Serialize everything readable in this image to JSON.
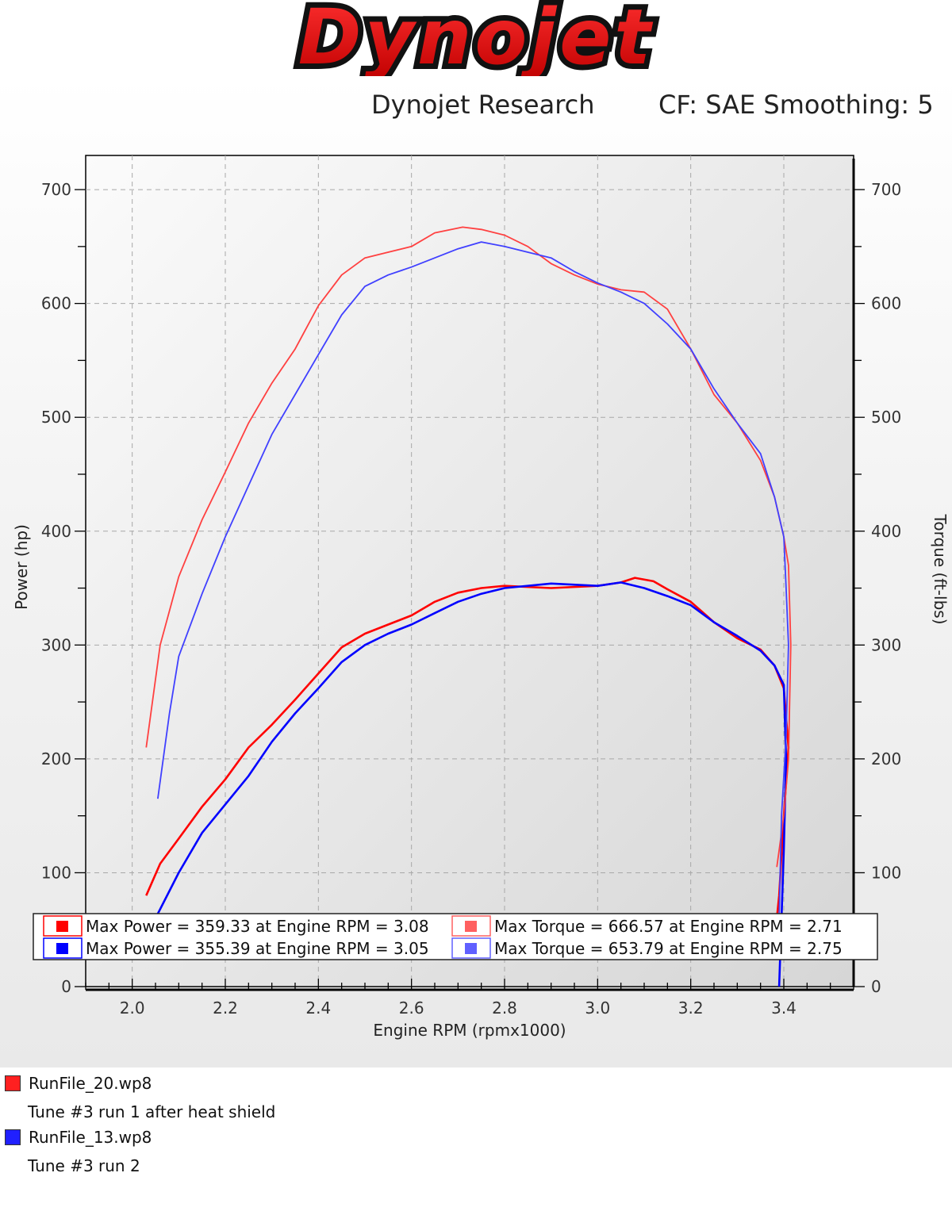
{
  "logo": {
    "text": "Dynojet"
  },
  "header": {
    "title": "Dynojet Research",
    "cf": "CF: SAE Smoothing: 5"
  },
  "chart_data": {
    "type": "line",
    "xlabel": "Engine RPM (rpmx1000)",
    "ylabel": "Power (hp)",
    "y2label": "Torque (ft-lbs)",
    "xlim": [
      1.9,
      3.55
    ],
    "ylim": [
      0,
      730
    ],
    "y2lim": [
      0,
      730
    ],
    "xticks": [
      "2.0",
      "2.2",
      "2.4",
      "2.6",
      "2.8",
      "3.0",
      "3.2",
      "3.4"
    ],
    "yticks": [
      "0",
      "100",
      "200",
      "300",
      "400",
      "500",
      "600",
      "700"
    ],
    "grid": true,
    "series": [
      {
        "name": "RunFile_20.wp8",
        "quantity": "power",
        "color": "#ff0000",
        "points": [
          [
            2.03,
            80
          ],
          [
            2.06,
            108
          ],
          [
            2.1,
            130
          ],
          [
            2.15,
            158
          ],
          [
            2.2,
            182
          ],
          [
            2.25,
            210
          ],
          [
            2.3,
            230
          ],
          [
            2.35,
            252
          ],
          [
            2.4,
            275
          ],
          [
            2.45,
            298
          ],
          [
            2.5,
            310
          ],
          [
            2.55,
            318
          ],
          [
            2.6,
            326
          ],
          [
            2.65,
            338
          ],
          [
            2.7,
            346
          ],
          [
            2.75,
            350
          ],
          [
            2.8,
            352
          ],
          [
            2.9,
            350
          ],
          [
            3.0,
            352
          ],
          [
            3.05,
            355
          ],
          [
            3.08,
            359
          ],
          [
            3.12,
            356
          ],
          [
            3.15,
            349
          ],
          [
            3.2,
            338
          ],
          [
            3.25,
            320
          ],
          [
            3.3,
            306
          ],
          [
            3.35,
            296
          ],
          [
            3.38,
            282
          ],
          [
            3.4,
            262
          ],
          [
            3.41,
            210
          ],
          [
            3.4,
            150
          ],
          [
            3.39,
            80
          ],
          [
            3.385,
            60
          ]
        ]
      },
      {
        "name": "RunFile_13.wp8",
        "quantity": "power",
        "color": "#0000ff",
        "points": [
          [
            2.05,
            60
          ],
          [
            2.1,
            100
          ],
          [
            2.15,
            135
          ],
          [
            2.2,
            160
          ],
          [
            2.25,
            185
          ],
          [
            2.3,
            215
          ],
          [
            2.35,
            240
          ],
          [
            2.4,
            262
          ],
          [
            2.45,
            285
          ],
          [
            2.5,
            300
          ],
          [
            2.55,
            310
          ],
          [
            2.6,
            318
          ],
          [
            2.65,
            328
          ],
          [
            2.7,
            338
          ],
          [
            2.75,
            345
          ],
          [
            2.8,
            350
          ],
          [
            2.9,
            354
          ],
          [
            3.0,
            352
          ],
          [
            3.05,
            355
          ],
          [
            3.1,
            350
          ],
          [
            3.15,
            343
          ],
          [
            3.2,
            335
          ],
          [
            3.25,
            320
          ],
          [
            3.3,
            308
          ],
          [
            3.35,
            295
          ],
          [
            3.38,
            282
          ],
          [
            3.4,
            265
          ],
          [
            3.405,
            200
          ],
          [
            3.4,
            120
          ],
          [
            3.395,
            60
          ],
          [
            3.39,
            0
          ]
        ]
      },
      {
        "name": "RunFile_20.wp8",
        "quantity": "torque",
        "color": "#ff4040",
        "points": [
          [
            2.03,
            210
          ],
          [
            2.06,
            300
          ],
          [
            2.1,
            360
          ],
          [
            2.15,
            410
          ],
          [
            2.2,
            452
          ],
          [
            2.25,
            495
          ],
          [
            2.3,
            530
          ],
          [
            2.35,
            560
          ],
          [
            2.4,
            598
          ],
          [
            2.45,
            625
          ],
          [
            2.5,
            640
          ],
          [
            2.55,
            645
          ],
          [
            2.6,
            650
          ],
          [
            2.65,
            662
          ],
          [
            2.71,
            667
          ],
          [
            2.75,
            665
          ],
          [
            2.8,
            660
          ],
          [
            2.85,
            650
          ],
          [
            2.9,
            635
          ],
          [
            2.95,
            625
          ],
          [
            3.0,
            617
          ],
          [
            3.05,
            612
          ],
          [
            3.1,
            610
          ],
          [
            3.15,
            595
          ],
          [
            3.2,
            560
          ],
          [
            3.25,
            520
          ],
          [
            3.3,
            495
          ],
          [
            3.35,
            462
          ],
          [
            3.38,
            430
          ],
          [
            3.4,
            395
          ],
          [
            3.41,
            370
          ],
          [
            3.415,
            300
          ],
          [
            3.41,
            200
          ],
          [
            3.4,
            150
          ],
          [
            3.385,
            105
          ]
        ]
      },
      {
        "name": "RunFile_13.wp8",
        "quantity": "torque",
        "color": "#4040ff",
        "points": [
          [
            2.055,
            165
          ],
          [
            2.08,
            240
          ],
          [
            2.1,
            290
          ],
          [
            2.15,
            345
          ],
          [
            2.2,
            395
          ],
          [
            2.25,
            440
          ],
          [
            2.3,
            485
          ],
          [
            2.35,
            520
          ],
          [
            2.4,
            555
          ],
          [
            2.45,
            590
          ],
          [
            2.5,
            615
          ],
          [
            2.55,
            625
          ],
          [
            2.6,
            632
          ],
          [
            2.65,
            640
          ],
          [
            2.7,
            648
          ],
          [
            2.75,
            654
          ],
          [
            2.8,
            650
          ],
          [
            2.85,
            645
          ],
          [
            2.9,
            640
          ],
          [
            2.95,
            628
          ],
          [
            3.0,
            618
          ],
          [
            3.05,
            610
          ],
          [
            3.1,
            600
          ],
          [
            3.15,
            582
          ],
          [
            3.2,
            560
          ],
          [
            3.25,
            525
          ],
          [
            3.3,
            495
          ],
          [
            3.35,
            468
          ],
          [
            3.38,
            430
          ],
          [
            3.4,
            395
          ],
          [
            3.405,
            350
          ],
          [
            3.41,
            300
          ],
          [
            3.405,
            220
          ],
          [
            3.395,
            150
          ],
          [
            3.39,
            60
          ]
        ]
      }
    ],
    "legend": {
      "placement": "bottom",
      "entries": [
        {
          "text": "Max Power = 359.33 at Engine RPM = 3.08",
          "color": "#ff0000"
        },
        {
          "text": "Max Torque = 666.57 at Engine RPM = 2.71",
          "color": "#ff6060"
        },
        {
          "text": "Max Power = 355.39 at Engine RPM = 3.05",
          "color": "#0000ff"
        },
        {
          "text": "Max Torque = 653.79 at Engine RPM = 2.75",
          "color": "#6060ff"
        }
      ]
    }
  },
  "runs": [
    {
      "file": "RunFile_20.wp8",
      "description": "Tune #3 run 1 after heat shield",
      "color": "#ff2020"
    },
    {
      "file": "RunFile_13.wp8",
      "description": "Tune #3 run 2",
      "color": "#2020ff"
    }
  ]
}
